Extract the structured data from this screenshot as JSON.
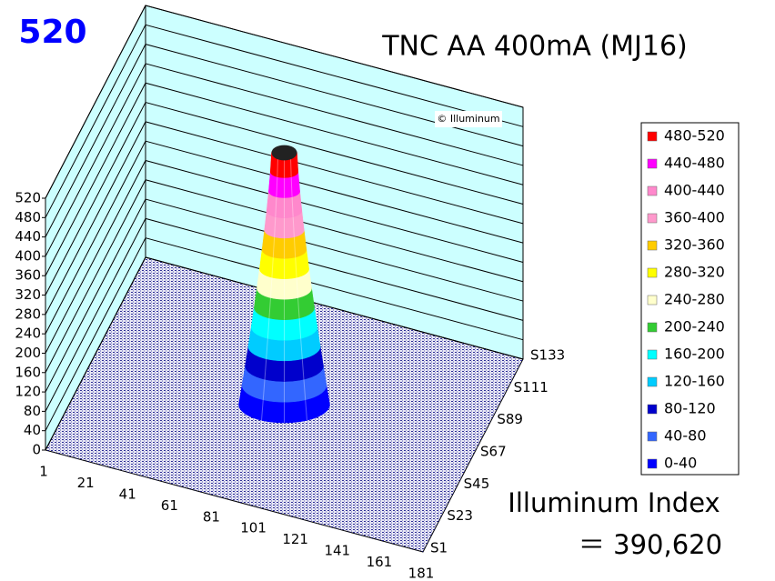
{
  "chart_data": {
    "type": "surface3d",
    "title": "TNC AA 400mA (MJ16)",
    "peak_value": 520,
    "watermark": "© Illuminum",
    "index_label": "Illuminum Index",
    "index_value": "＝ 390,620",
    "categories": [
      "1",
      "21",
      "41",
      "61",
      "81",
      "101",
      "121",
      "141",
      "161",
      "181"
    ],
    "depth_categories": [
      "S1",
      "S23",
      "S45",
      "S67",
      "S89",
      "S111",
      "S133"
    ],
    "zlim": [
      0,
      520
    ],
    "zticks": [
      0,
      40,
      80,
      120,
      160,
      200,
      240,
      280,
      320,
      360,
      400,
      440,
      480,
      520
    ],
    "wall_color": "#ccffff",
    "series": [
      {
        "name": "480-520",
        "color": "#ff0000"
      },
      {
        "name": "440-480",
        "color": "#ff00ff"
      },
      {
        "name": "400-440",
        "color": "#ff88cc"
      },
      {
        "name": "360-400",
        "color": "#ff99cc"
      },
      {
        "name": "320-360",
        "color": "#ffcc00"
      },
      {
        "name": "280-320",
        "color": "#ffff00"
      },
      {
        "name": "240-280",
        "color": "#ffffcc"
      },
      {
        "name": "200-240",
        "color": "#33cc33"
      },
      {
        "name": "160-200",
        "color": "#00ffff"
      },
      {
        "name": "120-160",
        "color": "#00ccff"
      },
      {
        "name": "80-120",
        "color": "#0000cc"
      },
      {
        "name": "40-80",
        "color": "#3366ff"
      },
      {
        "name": "0-40",
        "color": "#0000ff"
      }
    ]
  }
}
